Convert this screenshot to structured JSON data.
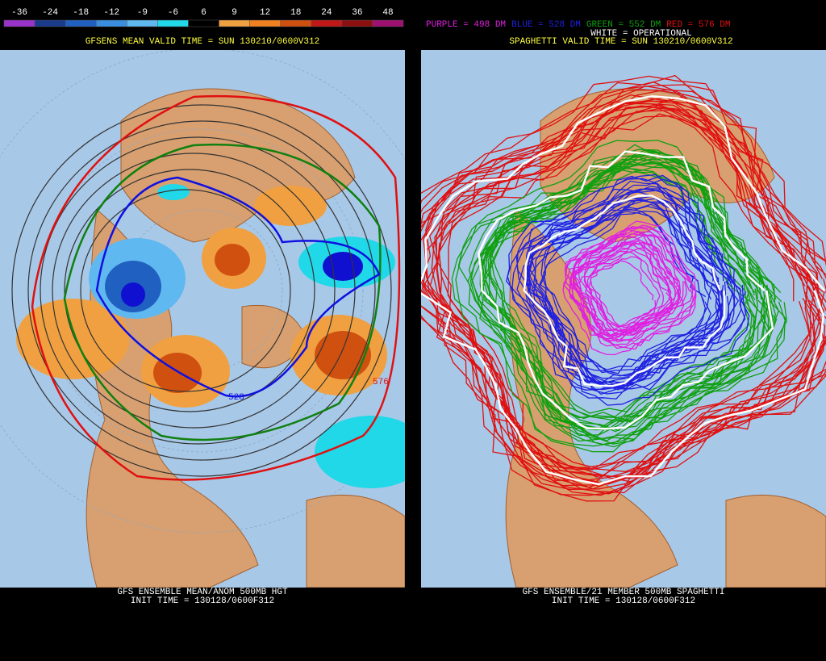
{
  "left_panel": {
    "legend": {
      "labels": [
        "-36",
        "-24",
        "-18",
        "-12",
        "-9",
        "-6",
        "6",
        "9",
        "12",
        "18",
        "24",
        "36",
        "48"
      ],
      "colors": [
        "#9933cc",
        "#1a3a8c",
        "#2060c0",
        "#3a8ee0",
        "#60b8f0",
        "#20d8e8",
        "#000000",
        "#f0a040",
        "#f08020",
        "#d05010",
        "#c01818",
        "#8c1010",
        "#a01070"
      ]
    },
    "title": "GFSENS MEAN VALID TIME = SUN 130210/0600V312",
    "map_labels": [
      "528",
      "576"
    ],
    "footer": [
      "GFS ENSEMBLE MEAN/ANOM 500MB HGT",
      "INIT TIME = 130128/0600F312"
    ]
  },
  "right_panel": {
    "legend": [
      {
        "text": "PURPLE = 498 DM",
        "color": "#e020e0"
      },
      {
        "text": "BLUE = 528 DM",
        "color": "#2020e0"
      },
      {
        "text": "GREEN = 552 DM",
        "color": "#10a010"
      },
      {
        "text": "RED = 576 DM",
        "color": "#e01010"
      }
    ],
    "operational": "WHITE = OPERATIONAL",
    "title": "SPAGHETTI VALID TIME = SUN 130210/0600V312",
    "footer": [
      "GFS ENSEMBLE/21 MEMBER 500MB SPAGHETTI",
      "INIT TIME = 130128/0600F312"
    ]
  }
}
